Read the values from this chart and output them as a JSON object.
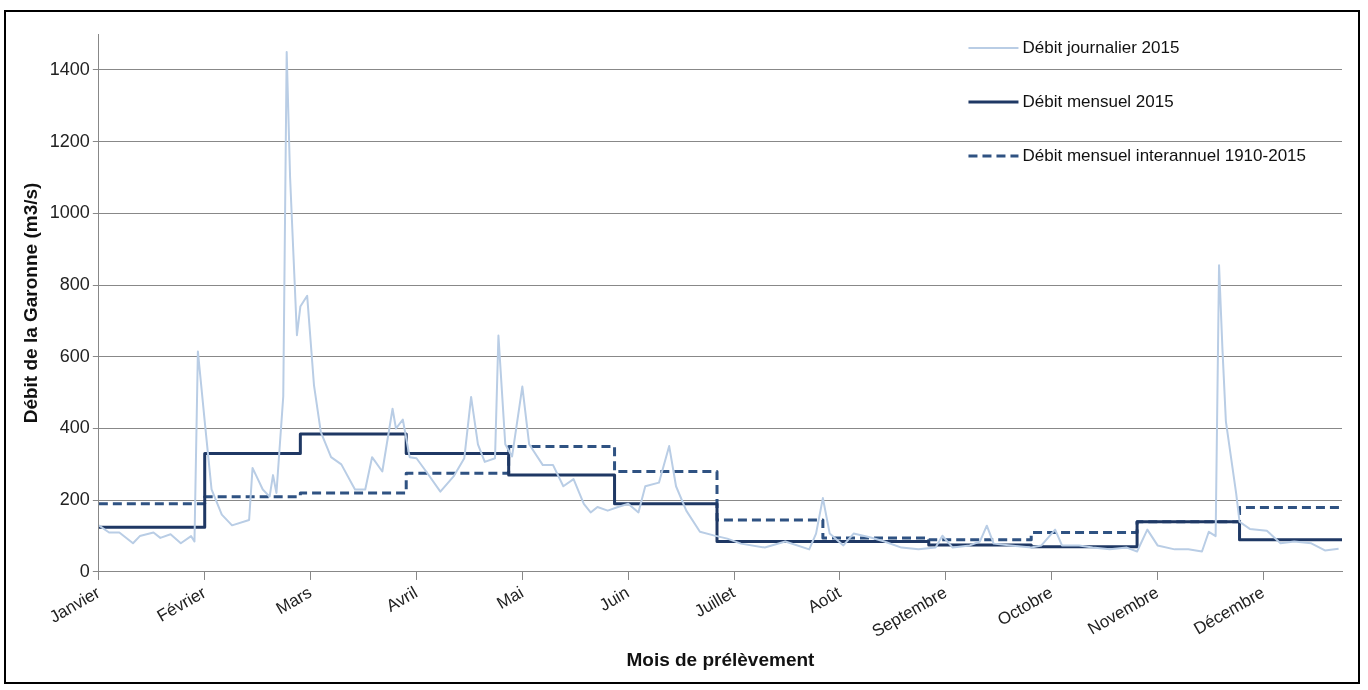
{
  "chart_data": {
    "type": "line",
    "xlabel": "Mois de prélèvement",
    "ylabel": "Débit de la Garonne (m3/s)",
    "xlim": [
      "2015-01-01",
      "2015-12-31"
    ],
    "xticks": [
      {
        "value": "2015-01-01",
        "label": "Janvier"
      },
      {
        "value": "2015-02-01",
        "label": "Février"
      },
      {
        "value": "2015-03-04",
        "label": "Mars"
      },
      {
        "value": "2015-04-04",
        "label": "Avril"
      },
      {
        "value": "2015-05-05",
        "label": "Mai"
      },
      {
        "value": "2015-06-05",
        "label": "Juin"
      },
      {
        "value": "2015-07-06",
        "label": "Juillet"
      },
      {
        "value": "2015-08-06",
        "label": "Août"
      },
      {
        "value": "2015-09-06",
        "label": "Septembre"
      },
      {
        "value": "2015-10-07",
        "label": "Octobre"
      },
      {
        "value": "2015-11-07",
        "label": "Novembre"
      },
      {
        "value": "2015-12-08",
        "label": "Décembre"
      }
    ],
    "ylim": [
      0,
      1500
    ],
    "yticks": [
      0,
      200,
      400,
      600,
      800,
      1000,
      1200,
      1400
    ],
    "grid": "y",
    "legend": "top right",
    "marker": "none",
    "series": [
      {
        "name": "Débit journalier 2015",
        "type": "line",
        "color": "#b9cde5",
        "line_style": "solid",
        "x": [
          "2015-01-01",
          "2015-01-04",
          "2015-01-07",
          "2015-01-11",
          "2015-01-13",
          "2015-01-17",
          "2015-01-19",
          "2015-01-22",
          "2015-01-25",
          "2015-01-28",
          "2015-01-29",
          "2015-01-30",
          "2015-02-01",
          "2015-02-03",
          "2015-02-06",
          "2015-02-09",
          "2015-02-14",
          "2015-02-15",
          "2015-02-18",
          "2015-02-20",
          "2015-02-21",
          "2015-02-22",
          "2015-02-24",
          "2015-02-25",
          "2015-02-26",
          "2015-02-28",
          "2015-03-01",
          "2015-03-03",
          "2015-03-05",
          "2015-03-07",
          "2015-03-10",
          "2015-03-13",
          "2015-03-17",
          "2015-03-20",
          "2015-03-22",
          "2015-03-25",
          "2015-03-28",
          "2015-03-29",
          "2015-03-31",
          "2015-04-02",
          "2015-04-04",
          "2015-04-07",
          "2015-04-11",
          "2015-04-15",
          "2015-04-18",
          "2015-04-20",
          "2015-04-22",
          "2015-04-24",
          "2015-04-27",
          "2015-04-28",
          "2015-04-30",
          "2015-05-02",
          "2015-05-05",
          "2015-05-07",
          "2015-05-11",
          "2015-05-14",
          "2015-05-17",
          "2015-05-20",
          "2015-05-23",
          "2015-05-25",
          "2015-05-27",
          "2015-05-30",
          "2015-06-02",
          "2015-06-05",
          "2015-06-08",
          "2015-06-10",
          "2015-06-14",
          "2015-06-17",
          "2015-06-19",
          "2015-06-22",
          "2015-06-26",
          "2015-06-30",
          "2015-07-04",
          "2015-07-08",
          "2015-07-15",
          "2015-07-21",
          "2015-07-28",
          "2015-07-30",
          "2015-08-01",
          "2015-08-03",
          "2015-08-07",
          "2015-08-10",
          "2015-08-15",
          "2015-08-19",
          "2015-08-24",
          "2015-08-29",
          "2015-09-03",
          "2015-09-05",
          "2015-09-08",
          "2015-09-13",
          "2015-09-16",
          "2015-09-18",
          "2015-09-20",
          "2015-09-25",
          "2015-10-01",
          "2015-10-04",
          "2015-10-08",
          "2015-10-10",
          "2015-10-15",
          "2015-10-19",
          "2015-10-24",
          "2015-10-29",
          "2015-11-01",
          "2015-11-04",
          "2015-11-07",
          "2015-11-12",
          "2015-11-16",
          "2015-11-20",
          "2015-11-22",
          "2015-11-24",
          "2015-11-25",
          "2015-11-26",
          "2015-11-27",
          "2015-11-30",
          "2015-12-01",
          "2015-12-04",
          "2015-12-09",
          "2015-12-13",
          "2015-12-17",
          "2015-12-22",
          "2015-12-26",
          "2015-12-30"
        ],
        "values": [
          130,
          110,
          110,
          80,
          100,
          110,
          95,
          105,
          80,
          100,
          85,
          615,
          420,
          230,
          160,
          130,
          145,
          290,
          230,
          210,
          270,
          220,
          490,
          1450,
          1100,
          660,
          740,
          770,
          520,
          390,
          320,
          300,
          230,
          230,
          320,
          280,
          455,
          400,
          425,
          320,
          317,
          278,
          224,
          268,
          317,
          488,
          356,
          307,
          317,
          659,
          356,
          322,
          517,
          356,
          298,
          298,
          239,
          259,
          190,
          166,
          181,
          171,
          181,
          190,
          166,
          239,
          249,
          351,
          239,
          171,
          112,
          102,
          93,
          79,
          68,
          85,
          63,
          107,
          206,
          107,
          74,
          107,
          96,
          85,
          68,
          63,
          68,
          101,
          68,
          74,
          85,
          129,
          79,
          74,
          68,
          74,
          118,
          74,
          74,
          68,
          63,
          68,
          57,
          118,
          74,
          63,
          63,
          57,
          112,
          100,
          855,
          620,
          420,
          220,
          140,
          120,
          115,
          80,
          85,
          80,
          60,
          65
        ]
      },
      {
        "name": "Débit mensuel 2015",
        "type": "step",
        "color": "#1f3864",
        "line_style": "solid",
        "x": [
          "2015-01-01",
          "2015-02-01",
          "2015-03-01",
          "2015-04-01",
          "2015-05-01",
          "2015-06-01",
          "2015-07-01",
          "2015-08-01",
          "2015-09-01",
          "2015-10-01",
          "2015-11-01",
          "2015-12-01",
          "2015-12-31"
        ],
        "values": [
          125,
          330,
          385,
          330,
          270,
          190,
          85,
          85,
          75,
          70,
          140,
          90,
          90
        ]
      },
      {
        "name": "Débit mensuel interannuel 1910-2015",
        "type": "step",
        "color": "#2f5282",
        "line_style": "dashed",
        "x": [
          "2015-01-01",
          "2015-02-01",
          "2015-03-01",
          "2015-04-01",
          "2015-05-01",
          "2015-06-01",
          "2015-07-01",
          "2015-08-01",
          "2015-09-01",
          "2015-10-01",
          "2015-11-01",
          "2015-12-01",
          "2015-12-31"
        ],
        "values": [
          190,
          210,
          220,
          275,
          350,
          280,
          145,
          95,
          90,
          110,
          140,
          180,
          180
        ]
      }
    ]
  }
}
